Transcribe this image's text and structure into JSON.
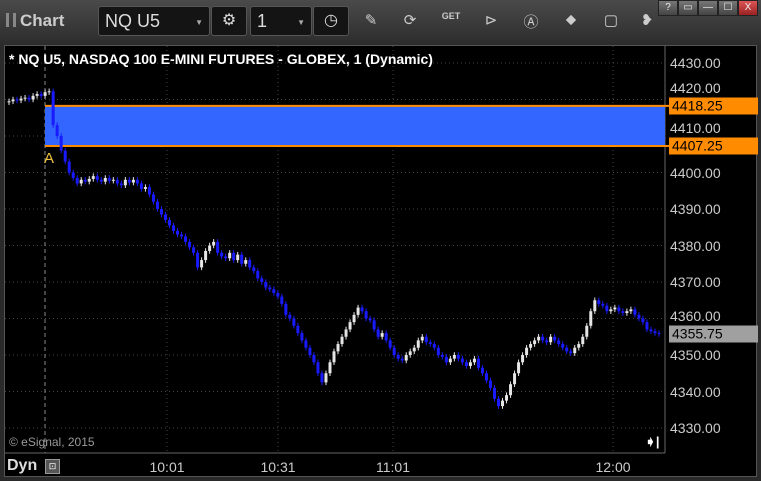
{
  "window": {
    "title": "Chart",
    "buttons": [
      "?",
      "▭",
      "—",
      "☐",
      "X"
    ]
  },
  "toolbar": {
    "symbol": "NQ U5",
    "interval": "1",
    "tools": [
      "pencil-icon",
      "refresh-icon",
      "get-icon",
      "play-icon",
      "a-icon",
      "link-icon",
      "comment-icon",
      "bird-icon"
    ]
  },
  "chart": {
    "title": "* NQ U5, NASDAQ 100 E-MINI FUTURES - GLOBEX, 1 (Dynamic)",
    "copyright": "© eSignal, 2015",
    "mode_label": "Dyn",
    "marker_label": "A",
    "price_ticks": [
      "4430.00",
      "4420.00",
      "4410.00",
      "4400.00",
      "4390.00",
      "4380.00",
      "4370.00",
      "4360.00",
      "4350.00",
      "4340.00",
      "4330.00"
    ],
    "time_ticks": [
      "10:01",
      "10:31",
      "11:01",
      "12:00"
    ],
    "levels": [
      {
        "value": 4418.25,
        "label": "4418.25"
      },
      {
        "value": 4407.25,
        "label": "4407.25"
      }
    ],
    "last_price": "4355.75",
    "colors": {
      "up": "#e6e6e6",
      "down": "#1a1aff",
      "band": "#3366ff",
      "level": "#ff8c00",
      "last": "#a0a0a0"
    }
  },
  "chart_data": {
    "type": "candlestick",
    "ylim": [
      4325,
      4436
    ],
    "closes": [
      4419.5,
      4420,
      4419.75,
      4420.25,
      4420.5,
      4420,
      4421,
      4421.5,
      4421,
      4422,
      4422.25,
      4413,
      4410,
      4406,
      4403,
      4400,
      4398.5,
      4397,
      4398,
      4397.5,
      4398.25,
      4399,
      4398,
      4397.5,
      4398.5,
      4397.75,
      4398,
      4397,
      4396.5,
      4398,
      4397.25,
      4398,
      4397,
      4395.5,
      4396,
      4394,
      4392,
      4390,
      4388.5,
      4387,
      4385.5,
      4384,
      4383,
      4382.5,
      4381,
      4379.5,
      4378,
      4374,
      4376,
      4378.5,
      4380,
      4381,
      4378,
      4377,
      4376.5,
      4378,
      4376,
      4377.5,
      4375,
      4376,
      4374,
      4373,
      4371,
      4370,
      4368.5,
      4368,
      4367,
      4366,
      4364,
      4361,
      4360,
      4358,
      4356,
      4354,
      4352,
      4350,
      4348,
      4345,
      4342.5,
      4345,
      4348,
      4351,
      4353,
      4355,
      4357,
      4359,
      4361,
      4363,
      4362,
      4360,
      4359.5,
      4357,
      4355,
      4356,
      4354,
      4352,
      4350,
      4349,
      4348.5,
      4350,
      4351,
      4352,
      4354,
      4355,
      4353.5,
      4353,
      4352,
      4350,
      4349.5,
      4348,
      4349,
      4350,
      4349,
      4348,
      4347,
      4348,
      4349,
      4346.5,
      4345,
      4343,
      4341,
      4338,
      4336,
      4337.5,
      4339,
      4342,
      4345,
      4348,
      4350,
      4352,
      4353,
      4354,
      4355,
      4354,
      4353.5,
      4355,
      4354,
      4353,
      4352,
      4351,
      4350.5,
      4352,
      4353,
      4355,
      4358,
      4362,
      4365,
      4364,
      4363.5,
      4362,
      4362.5,
      4363,
      4362,
      4361.5,
      4362,
      4362.5,
      4361,
      4360,
      4359,
      4357,
      4356.5,
      4356,
      4355.75
    ]
  }
}
